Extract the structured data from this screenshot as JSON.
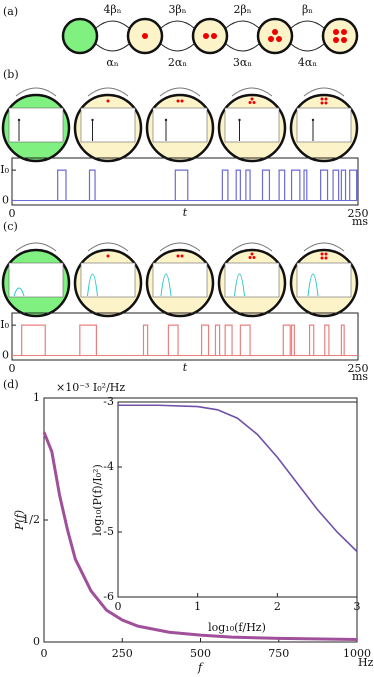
{
  "panel_labels": [
    "(a)",
    "(b)",
    "(c)",
    "(d)"
  ],
  "diagram": {
    "forward_rates": [
      "4βₙ",
      "3βₙ",
      "2βₙ",
      "βₙ"
    ],
    "backward_rates": [
      "αₙ",
      "2αₙ",
      "3αₙ",
      "4αₙ"
    ]
  },
  "traces": [
    {
      "ylim": [
        -0.15,
        1.4
      ],
      "yticks": [
        {
          "value": 1,
          "label": "I₀"
        },
        0
      ],
      "xlim": [
        0,
        250
      ],
      "xticks": [
        0,
        250
      ],
      "xlabel": "t",
      "xunit": "ms",
      "color": "#6b6bd6",
      "pulses": [
        [
          33,
          39
        ],
        [
          56,
          60
        ],
        [
          118,
          127
        ],
        [
          152,
          156
        ],
        [
          162,
          165
        ],
        [
          169,
          172
        ],
        [
          181,
          186
        ],
        [
          193,
          197
        ],
        [
          202,
          208
        ],
        [
          211,
          213
        ],
        [
          223,
          228
        ],
        [
          232,
          236
        ],
        [
          238,
          241
        ],
        [
          244,
          249
        ]
      ]
    },
    {
      "ylim": [
        -0.15,
        1.4
      ],
      "yticks": [
        {
          "value": 1,
          "label": "I₀"
        },
        0
      ],
      "xlim": [
        0,
        250
      ],
      "xticks": [
        0,
        250
      ],
      "xlabel": "t",
      "xunit": "ms",
      "color": "#e88080",
      "pulses": [
        [
          7,
          24
        ],
        [
          49,
          61
        ],
        [
          95,
          98
        ],
        [
          113,
          120
        ],
        [
          137,
          142
        ],
        [
          147,
          150
        ],
        [
          154,
          159
        ],
        [
          165,
          172
        ],
        [
          196,
          201
        ],
        [
          202,
          204
        ],
        [
          215,
          218
        ],
        [
          226,
          229
        ],
        [
          238,
          240
        ]
      ]
    }
  ],
  "spectrum": {
    "type": "line",
    "xlim": [
      0,
      1000
    ],
    "ylim": [
      0,
      1
    ],
    "xticks": [
      0,
      250,
      500,
      750,
      1000
    ],
    "yticks": [
      0,
      {
        "value": 0.5,
        "label": "1/2"
      },
      1
    ],
    "xlabel": "f",
    "xunit": "Hz",
    "ylabel": "P(f)",
    "yunit": "×10⁻³ I₀²/Hz",
    "color": "#a0509a",
    "x": [
      0,
      25,
      50,
      75,
      100,
      150,
      200,
      250,
      300,
      400,
      500,
      600,
      750,
      1000
    ],
    "values": [
      0.86,
      0.78,
      0.6,
      0.46,
      0.34,
      0.21,
      0.13,
      0.09,
      0.065,
      0.04,
      0.028,
      0.02,
      0.015,
      0.01
    ],
    "inset": {
      "type": "line",
      "xlim": [
        0,
        3
      ],
      "ylim": [
        -6,
        -3
      ],
      "xticks": [
        0,
        1,
        2,
        3
      ],
      "yticks": [
        -6,
        -5,
        -4,
        -3
      ],
      "xlabel": "log₁₀(f/Hz)",
      "ylabel": "log₁₀(P(f)/I₀²)",
      "color": "#7050a8",
      "x": [
        0,
        0.5,
        1,
        1.25,
        1.5,
        1.75,
        2,
        2.25,
        2.5,
        2.75,
        3
      ],
      "values": [
        -3.05,
        -3.05,
        -3.07,
        -3.12,
        -3.25,
        -3.5,
        -3.85,
        -4.25,
        -4.65,
        -5.0,
        -5.3
      ]
    }
  }
}
